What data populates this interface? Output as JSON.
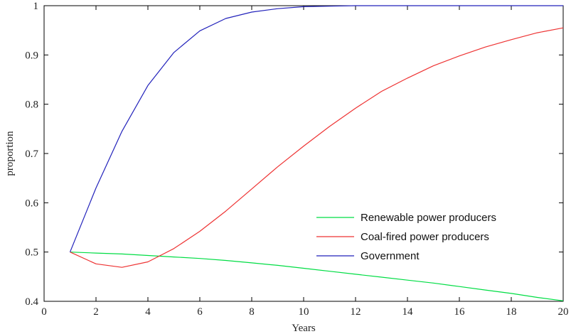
{
  "chart_data": {
    "type": "line",
    "title": "",
    "xlabel": "Years",
    "ylabel": "proportion",
    "xlim": [
      0,
      20
    ],
    "ylim": [
      0.4,
      1
    ],
    "xticks": [
      0,
      2,
      4,
      6,
      8,
      10,
      12,
      14,
      16,
      18,
      20
    ],
    "yticks": [
      0.4,
      0.5,
      0.6,
      0.7,
      0.8,
      0.9,
      1
    ],
    "ytick_labels": [
      "0.4",
      "0.5",
      "0.6",
      "0.7",
      "0.8",
      "0.9",
      "1"
    ],
    "grid": false,
    "legend_position": "lower-right",
    "x": [
      1,
      2,
      3,
      4,
      5,
      6,
      7,
      8,
      9,
      10,
      11,
      12,
      13,
      14,
      15,
      16,
      17,
      18,
      19,
      20
    ],
    "series": [
      {
        "name": "Renewable  power producers",
        "color": "#00dd44",
        "values": [
          0.5,
          0.498,
          0.496,
          0.493,
          0.49,
          0.487,
          0.483,
          0.478,
          0.473,
          0.467,
          0.461,
          0.455,
          0.449,
          0.443,
          0.437,
          0.43,
          0.423,
          0.416,
          0.408,
          0.401
        ]
      },
      {
        "name": "Coal-fired  power producers",
        "color": "#ee3333",
        "values": [
          0.5,
          0.476,
          0.469,
          0.48,
          0.507,
          0.542,
          0.583,
          0.628,
          0.673,
          0.715,
          0.755,
          0.792,
          0.826,
          0.853,
          0.878,
          0.898,
          0.916,
          0.931,
          0.945,
          0.955
        ]
      },
      {
        "name": "Government",
        "color": "#2222bb",
        "values": [
          0.5,
          0.63,
          0.745,
          0.838,
          0.905,
          0.949,
          0.974,
          0.987,
          0.994,
          0.998,
          0.999,
          1.0,
          1.0,
          1.0,
          1.0,
          1.0,
          1.0,
          1.0,
          1.0,
          1.0
        ]
      }
    ]
  }
}
